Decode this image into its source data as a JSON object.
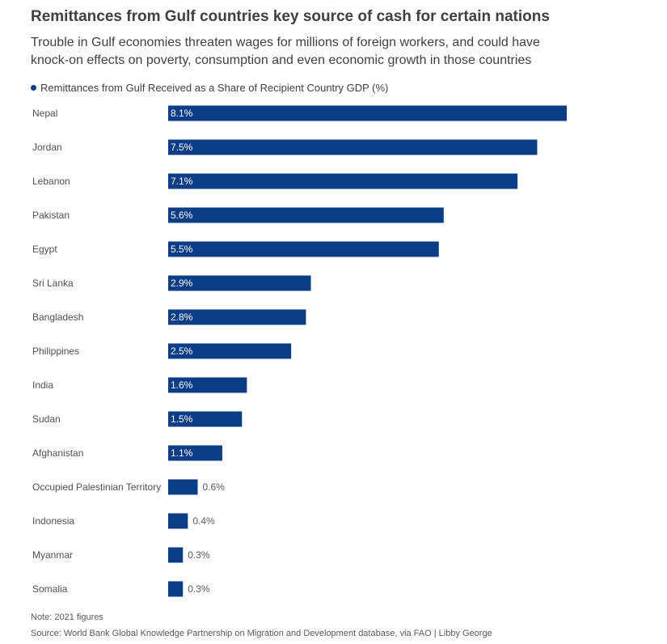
{
  "header": {
    "title": "Remittances from Gulf countries key source of cash for certain nations",
    "subtitle": "Trouble in Gulf economies threaten wages for millions of foreign workers, and could have knock-on effects on poverty, consumption and even economic growth in those countries"
  },
  "legend": {
    "label": "Remittances from Gulf Received as a Share of Recipient Country GDP (%)",
    "color": "#0b3d87"
  },
  "footer": {
    "note": "Note: 2021 figures",
    "source": "Source: World Bank Global Knowledge Partnership on Migration and Development database, via FAO | Libby George"
  },
  "chart_data": {
    "type": "bar",
    "orientation": "horizontal",
    "title": "Remittances from Gulf countries key source of cash for certain nations",
    "subtitle": "Trouble in Gulf economies threaten wages for millions of foreign workers, and could have knock-on effects on poverty, consumption and even economic growth in those countries",
    "xlabel": "",
    "ylabel": "",
    "xlim": [
      0,
      8.1
    ],
    "grid": false,
    "legend_position": "top-left",
    "bar_color": "#0b3d87",
    "categories": [
      "Nepal",
      "Jordan",
      "Lebanon",
      "Pakistan",
      "Egypt",
      "Sri Lanka",
      "Bangladesh",
      "Philippines",
      "India",
      "Sudan",
      "Afghanistan",
      "Occupied Palestinian Territory",
      "Indonesia",
      "Myanmar",
      "Somalia"
    ],
    "series": [
      {
        "name": "Remittances from Gulf Received as a Share of Recipient Country GDP (%)",
        "values": [
          8.1,
          7.5,
          7.1,
          5.6,
          5.5,
          2.9,
          2.8,
          2.5,
          1.6,
          1.5,
          1.1,
          0.6,
          0.4,
          0.3,
          0.3
        ],
        "labels": [
          "8.1%",
          "7.5%",
          "7.1%",
          "5.6%",
          "5.5%",
          "2.9%",
          "2.8%",
          "2.5%",
          "1.6%",
          "1.5%",
          "1.1%",
          "0.6%",
          "0.4%",
          "0.3%",
          "0.3%"
        ]
      }
    ]
  }
}
